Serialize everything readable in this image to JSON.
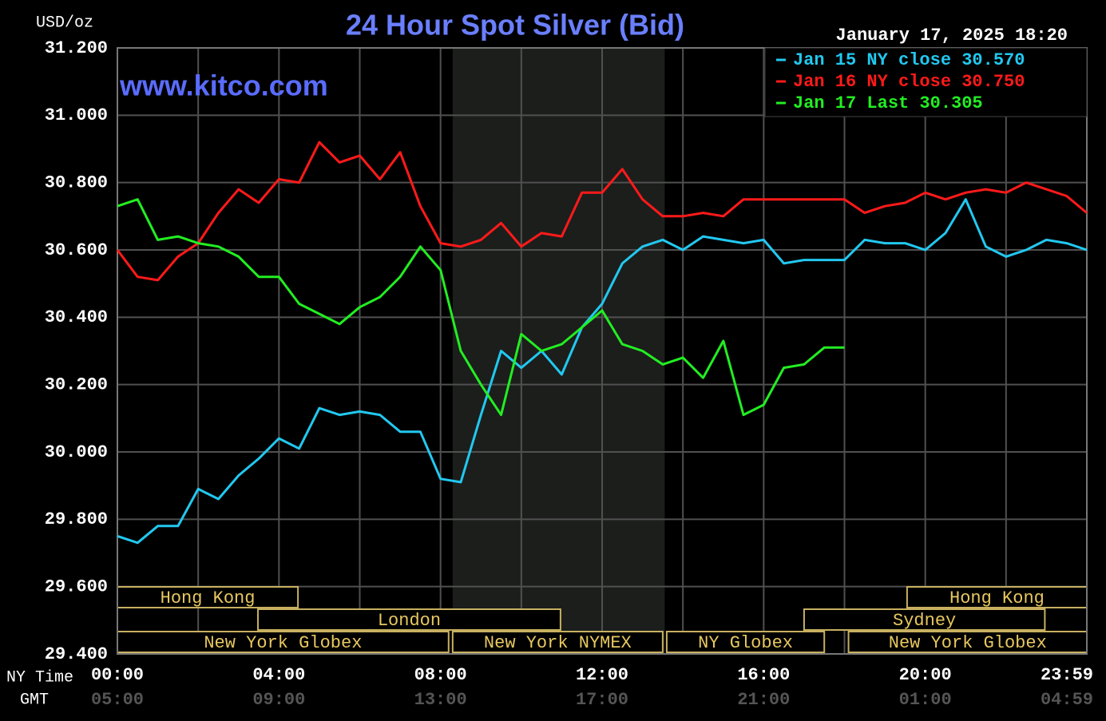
{
  "chart_data": {
    "type": "line",
    "title": "24 Hour Spot Silver (Bid)",
    "y_label": "USD/oz",
    "watermark": "www.kitco.com",
    "timestamp": "January 17, 2025 18:20",
    "x_label": "NY Time",
    "x2_label": "GMT",
    "x": [
      0,
      0.5,
      1,
      1.5,
      2,
      2.5,
      3,
      3.5,
      4,
      4.5,
      5,
      5.5,
      6,
      6.5,
      7,
      7.5,
      8,
      8.5,
      9,
      9.5,
      10,
      10.5,
      11,
      11.5,
      12,
      12.5,
      13,
      13.5,
      14,
      14.5,
      15,
      15.5,
      16,
      16.5,
      17,
      17.5,
      18,
      18.5,
      19,
      19.5,
      20,
      20.5,
      21,
      21.5,
      22,
      22.5,
      23,
      23.5,
      24
    ],
    "xlim": [
      0,
      24
    ],
    "xticks": [
      {
        "value": 0,
        "label": "00:00"
      },
      {
        "value": 4,
        "label": "04:00"
      },
      {
        "value": 8,
        "label": "08:00"
      },
      {
        "value": 12,
        "label": "12:00"
      },
      {
        "value": 16,
        "label": "16:00"
      },
      {
        "value": 20,
        "label": "20:00"
      },
      {
        "value": 24,
        "label": "23:59"
      }
    ],
    "x2ticks": [
      {
        "value": 0,
        "label": "05:00"
      },
      {
        "value": 4,
        "label": "09:00"
      },
      {
        "value": 8,
        "label": "13:00"
      },
      {
        "value": 12,
        "label": "17:00"
      },
      {
        "value": 16,
        "label": "21:00"
      },
      {
        "value": 20,
        "label": "01:00"
      },
      {
        "value": 24,
        "label": "04:59"
      }
    ],
    "x_minor_grid": [
      2,
      6,
      10,
      14,
      18,
      22
    ],
    "ylim": [
      29.4,
      31.2
    ],
    "yticks": [
      {
        "value": 29.4,
        "label": "29.400"
      },
      {
        "value": 29.6,
        "label": "29.600"
      },
      {
        "value": 29.8,
        "label": "29.800"
      },
      {
        "value": 30.0,
        "label": "30.000"
      },
      {
        "value": 30.2,
        "label": "30.200"
      },
      {
        "value": 30.4,
        "label": "30.400"
      },
      {
        "value": 30.6,
        "label": "30.600"
      },
      {
        "value": 30.8,
        "label": "30.800"
      },
      {
        "value": 31.0,
        "label": "31.000"
      },
      {
        "value": 31.2,
        "label": "31.200"
      }
    ],
    "grid": true,
    "legend": "top-right",
    "shaded": [
      8.3,
      13.55
    ],
    "sessions": [
      {
        "name": "Hong Kong",
        "row": 0,
        "start": 0,
        "end": 4.47
      },
      {
        "name": "Hong Kong",
        "row": 0,
        "start": 19.55,
        "end": 24
      },
      {
        "name": "London",
        "row": 1,
        "start": 3.48,
        "end": 10.97
      },
      {
        "name": "Sydney",
        "row": 1,
        "start": 17.0,
        "end": 22.96
      },
      {
        "name": "New York Globex",
        "row": 2,
        "start": 0,
        "end": 8.2
      },
      {
        "name": "New York NYMEX",
        "row": 2,
        "start": 8.3,
        "end": 13.5
      },
      {
        "name": "NY Globex",
        "row": 2,
        "start": 13.6,
        "end": 17.5
      },
      {
        "name": "New York Globex",
        "row": 2,
        "start": 18.1,
        "end": 24
      }
    ],
    "series": [
      {
        "name": "Jan 15 NY close 30.570",
        "color": "#22c8f0",
        "values": [
          29.75,
          29.73,
          29.78,
          29.78,
          29.89,
          29.86,
          29.93,
          29.98,
          30.04,
          30.01,
          30.13,
          30.11,
          30.12,
          30.11,
          30.06,
          30.06,
          29.92,
          29.91,
          30.11,
          30.3,
          30.25,
          30.3,
          30.23,
          30.37,
          30.44,
          30.56,
          30.61,
          30.63,
          30.6,
          30.64,
          30.63,
          30.62,
          30.63,
          30.56,
          30.57,
          30.57,
          30.57,
          30.63,
          30.62,
          30.62,
          30.6,
          30.65,
          30.75,
          30.61,
          30.58,
          30.6,
          30.63,
          30.62,
          30.6
        ]
      },
      {
        "name": "Jan 16 NY close 30.750",
        "color": "#ff1a1a",
        "values": [
          30.6,
          30.52,
          30.51,
          30.58,
          30.62,
          30.71,
          30.78,
          30.74,
          30.81,
          30.8,
          30.92,
          30.86,
          30.88,
          30.81,
          30.89,
          30.73,
          30.62,
          30.61,
          30.63,
          30.68,
          30.61,
          30.65,
          30.64,
          30.77,
          30.77,
          30.84,
          30.75,
          30.7,
          30.7,
          30.71,
          30.7,
          30.75,
          30.75,
          30.75,
          30.75,
          30.75,
          30.75,
          30.71,
          30.73,
          30.74,
          30.77,
          30.75,
          30.77,
          30.78,
          30.77,
          30.8,
          30.78,
          30.76,
          30.71
        ]
      },
      {
        "name": "Jan 17 Last 30.305",
        "color": "#22ee22",
        "values": [
          30.73,
          30.75,
          30.63,
          30.64,
          30.62,
          30.61,
          30.58,
          30.52,
          30.52,
          30.44,
          30.41,
          30.38,
          30.43,
          30.46,
          30.52,
          30.61,
          30.54,
          30.3,
          30.2,
          30.11,
          30.35,
          30.3,
          30.32,
          30.37,
          30.42,
          30.32,
          30.3,
          30.26,
          30.28,
          30.22,
          30.33,
          30.11,
          30.14,
          30.25,
          30.26,
          30.31,
          30.31,
          null,
          null,
          null,
          null,
          null,
          null,
          null,
          null,
          null,
          null,
          null,
          null
        ]
      }
    ]
  }
}
